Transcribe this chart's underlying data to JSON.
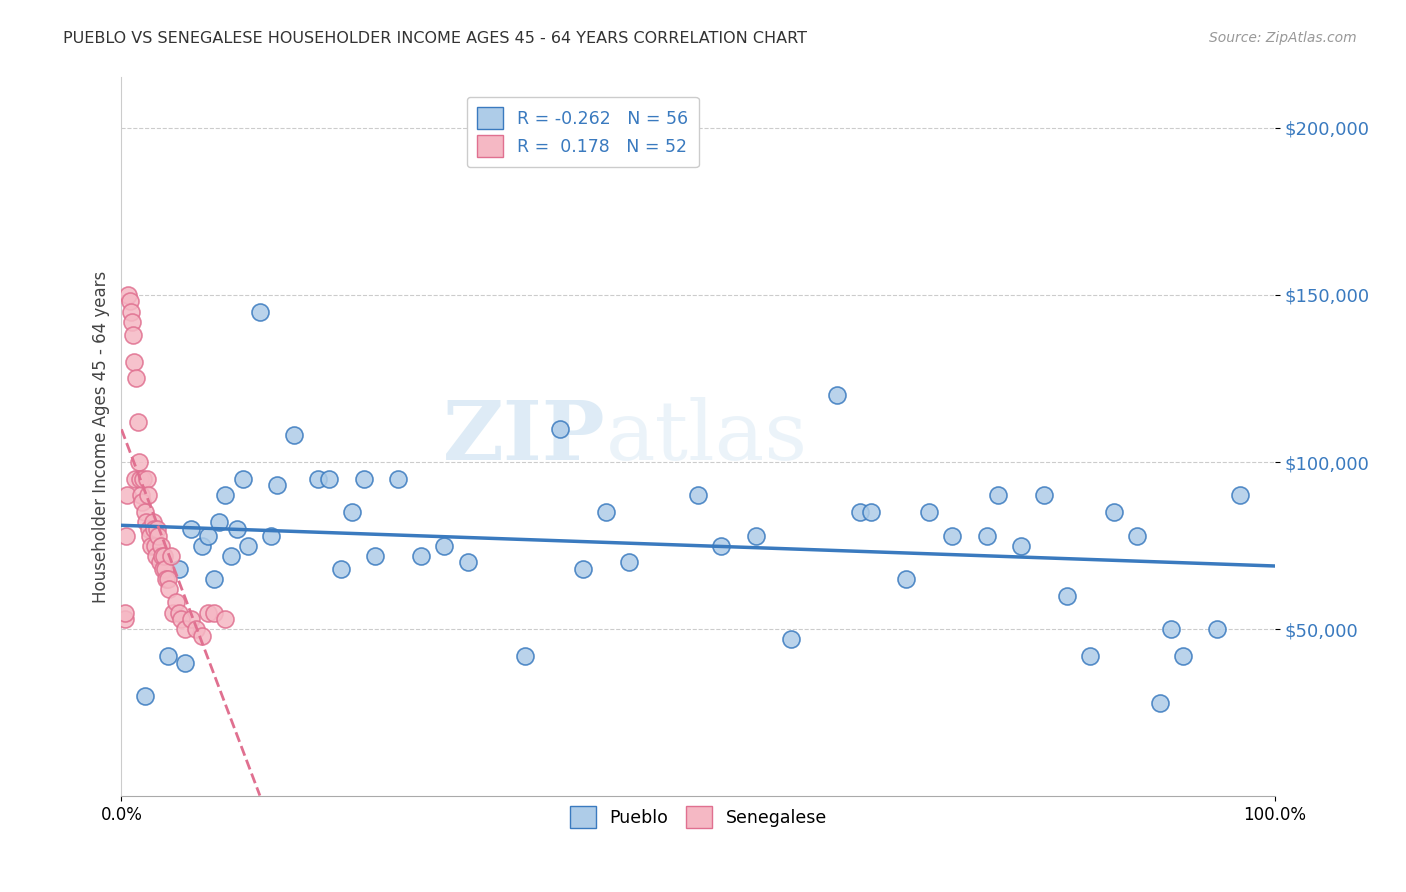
{
  "title": "PUEBLO VS SENEGALESE HOUSEHOLDER INCOME AGES 45 - 64 YEARS CORRELATION CHART",
  "source": "Source: ZipAtlas.com",
  "ylabel": "Householder Income Ages 45 - 64 years",
  "xmin": 0.0,
  "xmax": 1.0,
  "ymin": 0,
  "ymax": 215000,
  "yticks": [
    50000,
    100000,
    150000,
    200000
  ],
  "ytick_labels": [
    "$50,000",
    "$100,000",
    "$150,000",
    "$200,000"
  ],
  "xtick_labels": [
    "0.0%",
    "100.0%"
  ],
  "pueblo_R": -0.262,
  "pueblo_N": 56,
  "senegalese_R": 0.178,
  "senegalese_N": 52,
  "pueblo_color": "#aecce8",
  "senegalese_color": "#f5b8c4",
  "pueblo_line_color": "#3a7abf",
  "senegalese_line_color": "#e07090",
  "pueblo_x": [
    0.02,
    0.04,
    0.05,
    0.055,
    0.06,
    0.07,
    0.075,
    0.08,
    0.085,
    0.09,
    0.095,
    0.1,
    0.105,
    0.11,
    0.12,
    0.13,
    0.135,
    0.15,
    0.17,
    0.18,
    0.19,
    0.2,
    0.21,
    0.22,
    0.24,
    0.26,
    0.28,
    0.3,
    0.35,
    0.38,
    0.4,
    0.42,
    0.44,
    0.5,
    0.52,
    0.55,
    0.58,
    0.62,
    0.64,
    0.65,
    0.68,
    0.7,
    0.72,
    0.75,
    0.76,
    0.78,
    0.8,
    0.82,
    0.84,
    0.86,
    0.88,
    0.9,
    0.91,
    0.92,
    0.95,
    0.97
  ],
  "pueblo_y": [
    30000,
    42000,
    68000,
    40000,
    80000,
    75000,
    78000,
    65000,
    82000,
    90000,
    72000,
    80000,
    95000,
    75000,
    145000,
    78000,
    93000,
    108000,
    95000,
    95000,
    68000,
    85000,
    95000,
    72000,
    95000,
    72000,
    75000,
    70000,
    42000,
    110000,
    68000,
    85000,
    70000,
    90000,
    75000,
    78000,
    47000,
    120000,
    85000,
    85000,
    65000,
    85000,
    78000,
    78000,
    90000,
    75000,
    90000,
    60000,
    42000,
    85000,
    78000,
    28000,
    50000,
    42000,
    50000,
    90000
  ],
  "senegalese_x": [
    0.003,
    0.003,
    0.004,
    0.005,
    0.006,
    0.007,
    0.008,
    0.009,
    0.01,
    0.011,
    0.012,
    0.013,
    0.014,
    0.015,
    0.016,
    0.017,
    0.018,
    0.019,
    0.02,
    0.021,
    0.022,
    0.023,
    0.024,
    0.025,
    0.026,
    0.027,
    0.028,
    0.029,
    0.03,
    0.031,
    0.032,
    0.033,
    0.034,
    0.035,
    0.036,
    0.037,
    0.038,
    0.039,
    0.04,
    0.041,
    0.043,
    0.045,
    0.047,
    0.05,
    0.052,
    0.055,
    0.06,
    0.065,
    0.07,
    0.075,
    0.08,
    0.09
  ],
  "senegalese_y": [
    53000,
    55000,
    78000,
    90000,
    150000,
    148000,
    145000,
    142000,
    138000,
    130000,
    95000,
    125000,
    112000,
    100000,
    95000,
    90000,
    88000,
    95000,
    85000,
    82000,
    95000,
    90000,
    80000,
    78000,
    75000,
    82000,
    80000,
    75000,
    72000,
    80000,
    78000,
    70000,
    75000,
    72000,
    68000,
    72000,
    68000,
    65000,
    65000,
    62000,
    72000,
    55000,
    58000,
    55000,
    53000,
    50000,
    53000,
    50000,
    48000,
    55000,
    55000,
    53000
  ],
  "watermark_zip": "ZIP",
  "watermark_atlas": "atlas",
  "background_color": "#ffffff",
  "grid_color": "#cccccc"
}
